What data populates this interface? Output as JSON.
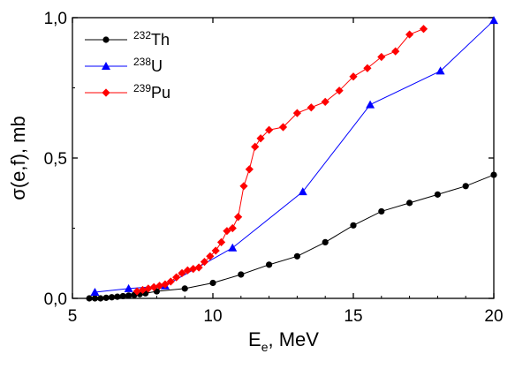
{
  "chart_data": {
    "type": "line",
    "title": "",
    "xlabel": {
      "main": "E",
      "sub": "e",
      "rest": ", MeV"
    },
    "ylabel": "σ(e,f), mb",
    "xlim": [
      5,
      20
    ],
    "ylim": [
      0,
      1
    ],
    "xticks": [
      {
        "value": 5,
        "label": "5"
      },
      {
        "value": 10,
        "label": "10"
      },
      {
        "value": 15,
        "label": "15"
      },
      {
        "value": 20,
        "label": "20"
      }
    ],
    "yticks": [
      {
        "value": 0,
        "label": "0,0"
      },
      {
        "value": 0.5,
        "label": "0,5"
      },
      {
        "value": 1,
        "label": "1,0"
      }
    ],
    "grid": false,
    "legend_position": "top-left",
    "series": [
      {
        "name": "Th",
        "mass": "232",
        "color": "#000000",
        "marker": "circle",
        "x": [
          5.6,
          5.8,
          6.0,
          6.2,
          6.4,
          6.6,
          6.8,
          7.0,
          7.2,
          7.4,
          7.6,
          8.0,
          9.0,
          10.0,
          11.0,
          12.0,
          13.0,
          14.0,
          15.0,
          16.0,
          17.0,
          18.0,
          19.0,
          20.0
        ],
        "y": [
          0.0,
          0.0,
          0.0,
          0.002,
          0.004,
          0.006,
          0.008,
          0.01,
          0.012,
          0.015,
          0.018,
          0.025,
          0.035,
          0.055,
          0.085,
          0.12,
          0.15,
          0.2,
          0.26,
          0.31,
          0.34,
          0.37,
          0.4,
          0.44
        ]
      },
      {
        "name": "U",
        "mass": "238",
        "color": "#0000ff",
        "marker": "triangle",
        "x": [
          5.8,
          7.0,
          8.3,
          10.7,
          13.2,
          15.6,
          18.1,
          20.0
        ],
        "y": [
          0.022,
          0.035,
          0.045,
          0.18,
          0.38,
          0.69,
          0.81,
          0.99
        ]
      },
      {
        "name": "Pu",
        "mass": "239",
        "color": "#ff0000",
        "marker": "diamond",
        "x": [
          7.3,
          7.5,
          7.7,
          7.9,
          8.1,
          8.3,
          8.5,
          8.7,
          8.9,
          9.1,
          9.3,
          9.5,
          9.7,
          9.9,
          10.1,
          10.3,
          10.5,
          10.7,
          10.9,
          11.1,
          11.3,
          11.5,
          11.7,
          12.0,
          12.5,
          13.0,
          13.5,
          14.0,
          14.5,
          15.0,
          15.5,
          16.0,
          16.5,
          17.0,
          17.5
        ],
        "y": [
          0.025,
          0.03,
          0.035,
          0.04,
          0.045,
          0.05,
          0.06,
          0.075,
          0.09,
          0.1,
          0.105,
          0.11,
          0.13,
          0.15,
          0.17,
          0.2,
          0.24,
          0.25,
          0.29,
          0.4,
          0.46,
          0.54,
          0.57,
          0.6,
          0.61,
          0.66,
          0.68,
          0.7,
          0.74,
          0.79,
          0.82,
          0.86,
          0.88,
          0.94,
          0.96
        ]
      }
    ]
  }
}
